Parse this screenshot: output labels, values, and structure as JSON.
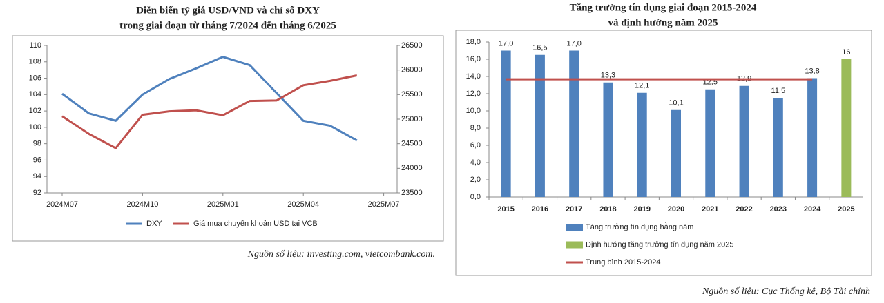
{
  "chart_data": [
    {
      "type": "line",
      "title": "Diễn biến tỷ giá USD/VND và chỉ số DXY",
      "subtitle": "trong giai đoạn từ tháng 7/2024 đến tháng 6/2025",
      "categories": [
        "2024M07",
        null,
        null,
        "2024M10",
        null,
        null,
        "2025M01",
        null,
        null,
        "2025M04",
        null,
        null,
        "2025M07"
      ],
      "series": [
        {
          "name": "DXY",
          "color": "#4f81bd",
          "values": [
            104.1,
            101.7,
            100.8,
            104.0,
            105.9,
            107.2,
            108.6,
            107.6,
            104.2,
            100.8,
            100.2,
            98.4,
            null
          ]
        },
        {
          "name": "Giá mua chuyển khoản USD tại VCB",
          "color": "#c0504d",
          "axis": "y2",
          "values": [
            25060,
            24700,
            24410,
            25090,
            25160,
            25180,
            25080,
            25370,
            25380,
            25690,
            25780,
            25890,
            null
          ]
        }
      ],
      "ylim": [
        92,
        110
      ],
      "yticks": [
        92,
        94,
        96,
        98,
        100,
        102,
        104,
        106,
        108,
        110
      ],
      "y2lim": [
        23500,
        26500
      ],
      "y2ticks": [
        23500,
        24000,
        24500,
        25000,
        25500,
        26000,
        26500
      ],
      "source": "Nguồn số liệu: investing.com, vietcombank.com."
    },
    {
      "type": "bar",
      "title": "Tăng trưởng tín dụng giai đoạn 2015-2024",
      "subtitle": "và định hướng năm 2025",
      "categories": [
        "2015",
        "2016",
        "2017",
        "2018",
        "2019",
        "2020",
        "2021",
        "2022",
        "2023",
        "2024",
        "2025"
      ],
      "series": [
        {
          "name": "Tăng trưởng tín dụng hằng năm",
          "color": "#4f81bd",
          "values": [
            17.0,
            16.5,
            17.0,
            13.3,
            12.1,
            10.1,
            12.5,
            12.9,
            11.5,
            13.8,
            null
          ],
          "value_labels": [
            "17,0",
            "16,5",
            "17,0",
            "13,3",
            "12,1",
            "10,1",
            "12,5",
            "12,9",
            "11,5",
            "13,8",
            null
          ]
        },
        {
          "name": "Định hướng tăng trưởng tín dụng năm 2025",
          "color": "#9bbb59",
          "values": [
            null,
            null,
            null,
            null,
            null,
            null,
            null,
            null,
            null,
            null,
            16
          ]
        },
        {
          "name": "Trung bình 2015-2024",
          "color": "#c0504d",
          "type": "line",
          "values": [
            13.67,
            13.67,
            13.67,
            13.67,
            13.67,
            13.67,
            13.67,
            13.67,
            13.67,
            13.67,
            null
          ]
        }
      ],
      "ylim": [
        0,
        18
      ],
      "yticks": [
        {
          "value": 0,
          "label": "0,0"
        },
        {
          "value": 2,
          "label": "2,0"
        },
        {
          "value": 4,
          "label": "4,0"
        },
        {
          "value": 6,
          "label": "6,0"
        },
        {
          "value": 8,
          "label": "8,0"
        },
        {
          "value": 10,
          "label": "10,0"
        },
        {
          "value": 12,
          "label": "12,0"
        },
        {
          "value": 14,
          "label": "14,0"
        },
        {
          "value": 16,
          "label": "16,0"
        },
        {
          "value": 18,
          "label": "18,0"
        }
      ],
      "source": "Nguồn số liệu: Cục Thống kê, Bộ Tài chính"
    }
  ]
}
